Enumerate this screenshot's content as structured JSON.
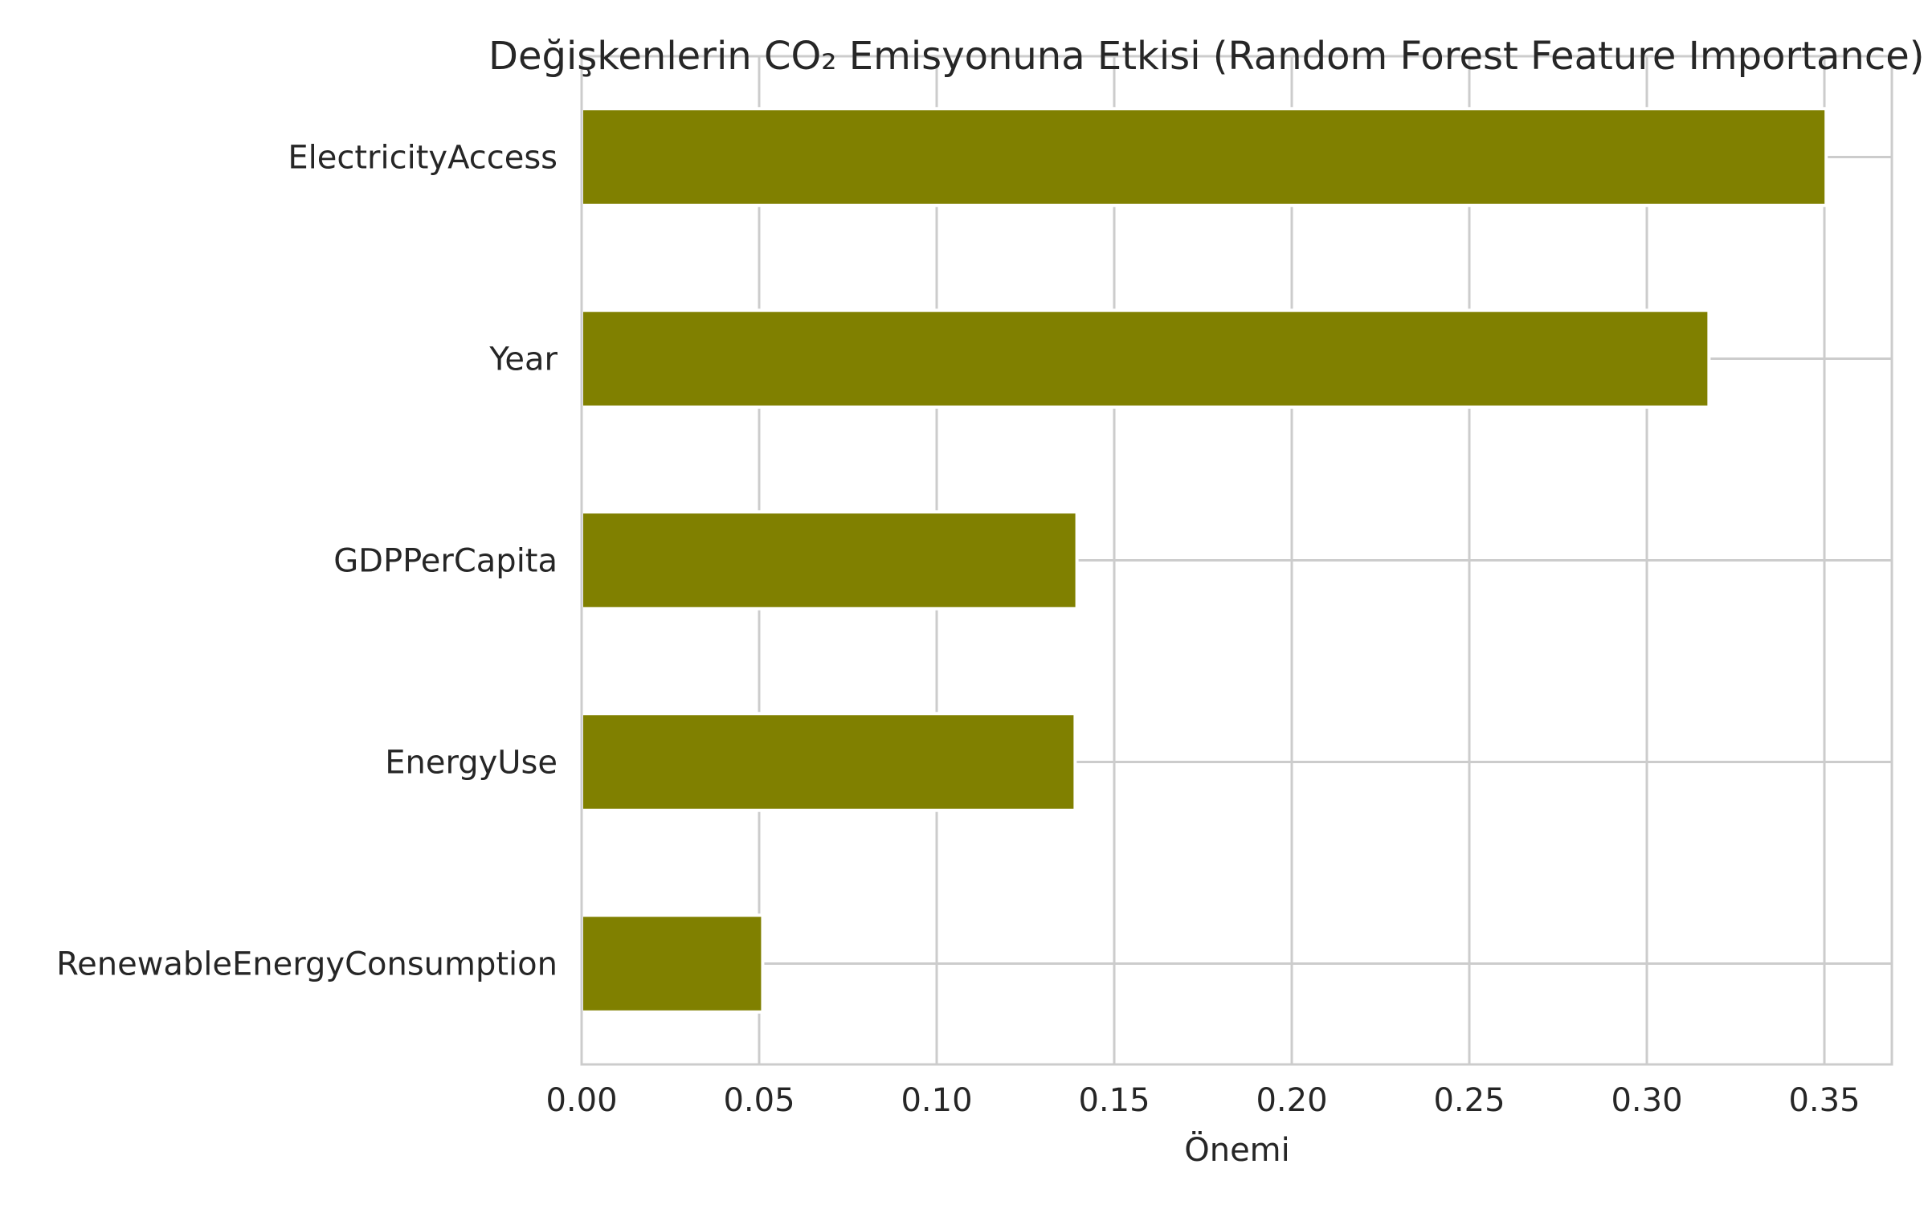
{
  "chart_data": {
    "type": "bar",
    "orientation": "horizontal",
    "title": "Değişkenlerin CO₂ Emisyonuna Etkisi (Random Forest Feature Importance)",
    "xlabel": "Önemi",
    "ylabel": "",
    "categories": [
      "ElectricityAccess",
      "Year",
      "GDPPerCapita",
      "EnergyUse",
      "RenewableEnergyConsumption"
    ],
    "values": [
      0.3505,
      0.3175,
      0.1395,
      0.139,
      0.051
    ],
    "xlim": [
      0,
      0.369
    ],
    "xticks": [
      0.0,
      0.05,
      0.1,
      0.15,
      0.2,
      0.25,
      0.3,
      0.35
    ],
    "xtick_labels": [
      "0.00",
      "0.05",
      "0.10",
      "0.15",
      "0.20",
      "0.25",
      "0.30",
      "0.35"
    ],
    "bar_color": "#808000",
    "grid": true
  }
}
